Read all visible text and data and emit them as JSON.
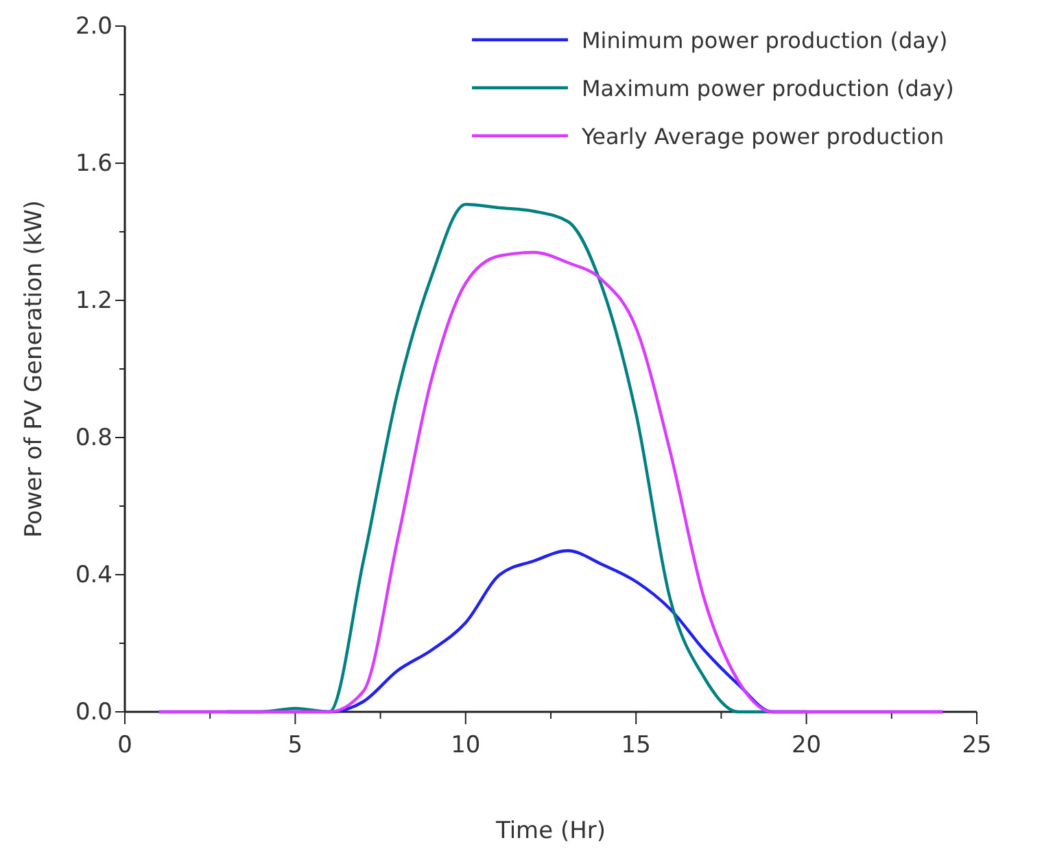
{
  "chart_data": {
    "type": "line",
    "xlabel": "Time (Hr)",
    "ylabel": "Power of PV Generation (kW)",
    "x": [
      1,
      2,
      3,
      4,
      5,
      6,
      7,
      8,
      9,
      10,
      11,
      12,
      13,
      14,
      15,
      16,
      17,
      18,
      19,
      20,
      21,
      22,
      23,
      24
    ],
    "series": [
      {
        "name": "Minimum power production (day)",
        "color": "#2020f0",
        "values": [
          0,
          0,
          0,
          0,
          0,
          0,
          0.03,
          0.12,
          0.18,
          0.26,
          0.4,
          0.44,
          0.47,
          0.43,
          0.38,
          0.3,
          0.18,
          0.08,
          0,
          0,
          0,
          0,
          0,
          0
        ]
      },
      {
        "name": "Maximum power production (day)",
        "color": "#008080",
        "values": [
          null,
          null,
          0,
          0,
          0.01,
          0,
          0.44,
          0.93,
          1.27,
          1.48,
          1.47,
          1.46,
          1.43,
          1.24,
          0.87,
          0.33,
          0.1,
          0,
          0,
          0,
          null,
          null,
          null,
          null
        ]
      },
      {
        "name": "Yearly Average power production",
        "color": "#d83cff",
        "values": [
          0,
          0,
          0,
          0,
          0,
          0,
          0.06,
          0.5,
          0.97,
          1.25,
          1.33,
          1.34,
          1.31,
          1.26,
          1.12,
          0.76,
          0.33,
          0.09,
          0,
          0,
          0,
          0,
          0,
          0
        ]
      }
    ],
    "xlim": [
      0,
      25
    ],
    "xticks": [
      0,
      {
        "value": 2.5,
        "label": null
      },
      5,
      {
        "value": 7.5,
        "label": null
      },
      10,
      {
        "value": 12.5,
        "label": null
      },
      15,
      {
        "value": 17.5,
        "label": null
      },
      20,
      {
        "value": 22.5,
        "label": null
      },
      25
    ],
    "ylim": [
      0,
      2
    ],
    "yticks": [
      "0.0",
      {
        "value": 0.2,
        "label": null
      },
      {
        "value": 0.4,
        "label": "0.4"
      },
      {
        "value": 0.6,
        "label": null
      },
      {
        "value": 0.8,
        "label": "0.8"
      },
      {
        "value": 1.0,
        "label": null
      },
      {
        "value": 1.2,
        "label": "1.2"
      },
      {
        "value": 1.4,
        "label": null
      },
      {
        "value": 1.6,
        "label": "1.6"
      },
      {
        "value": 1.8,
        "label": null
      },
      {
        "value": 2.0,
        "label": "2.0"
      }
    ],
    "legend": "top right",
    "grid": false,
    "marker": "none",
    "line_style": "solid"
  }
}
